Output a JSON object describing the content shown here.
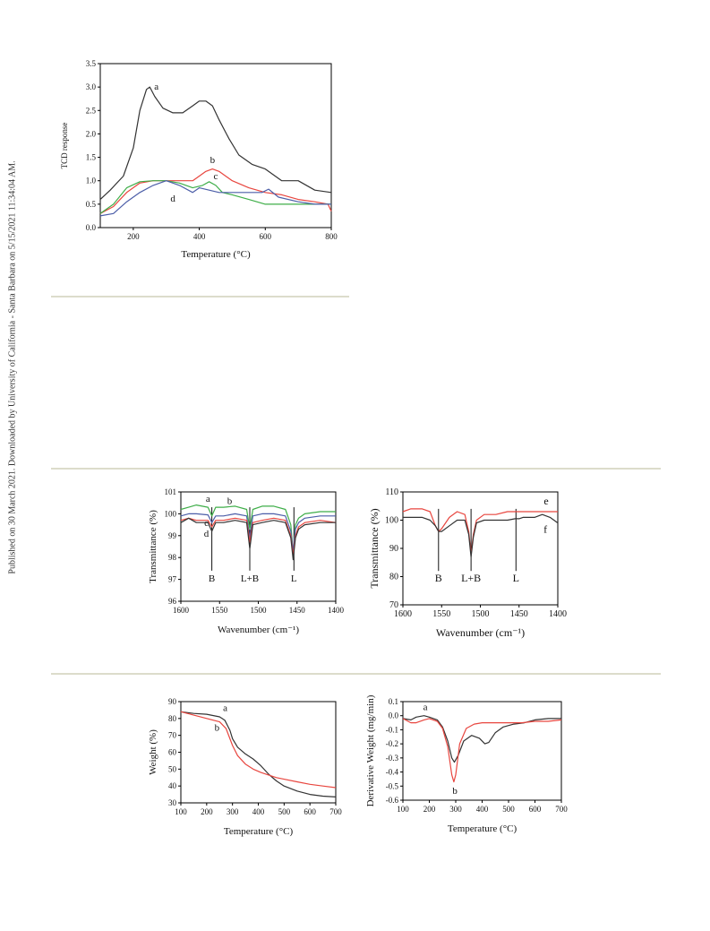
{
  "side_note": "Published on 30 March 2021. Downloaded by University of California - Santa Barbara on 5/15/2021 11:34:04 AM.",
  "colors": {
    "black": "#333333",
    "red": "#e8463f",
    "green": "#3fae49",
    "blue": "#4c5ea8",
    "rule": "#dcdccb"
  },
  "chart_data": [
    {
      "id": "tpr",
      "type": "line",
      "xlabel": "Temperature (°C)",
      "ylabel": "TCD response",
      "xlim": [
        100,
        800
      ],
      "ylim": [
        0,
        3.5
      ],
      "xticks": [
        200,
        400,
        600,
        800
      ],
      "yticks": [
        0.0,
        0.5,
        1.0,
        1.5,
        2.0,
        2.5,
        3.0,
        3.5
      ],
      "ytick_labels": [
        "0.0",
        "0.5",
        "1.0",
        "1.5",
        "2.0",
        "2.5",
        "3.0",
        "3.5"
      ],
      "series": [
        {
          "name": "a",
          "color": "black",
          "x": [
            100,
            130,
            170,
            200,
            220,
            240,
            250,
            265,
            290,
            320,
            350,
            380,
            400,
            420,
            440,
            460,
            490,
            520,
            560,
            600,
            650,
            700,
            750,
            800
          ],
          "y": [
            0.6,
            0.8,
            1.1,
            1.7,
            2.5,
            2.95,
            3.0,
            2.8,
            2.55,
            2.45,
            2.45,
            2.6,
            2.7,
            2.7,
            2.6,
            2.3,
            1.9,
            1.55,
            1.35,
            1.25,
            1.0,
            1.0,
            0.8,
            0.75
          ]
        },
        {
          "name": "b",
          "color": "red",
          "x": [
            100,
            140,
            180,
            220,
            260,
            300,
            340,
            380,
            400,
            420,
            440,
            460,
            500,
            550,
            600,
            650,
            700,
            750,
            790,
            800
          ],
          "y": [
            0.3,
            0.45,
            0.75,
            0.95,
            1.0,
            1.0,
            1.0,
            1.0,
            1.1,
            1.2,
            1.25,
            1.2,
            1.0,
            0.85,
            0.75,
            0.7,
            0.6,
            0.55,
            0.5,
            0.35
          ]
        },
        {
          "name": "c",
          "color": "green",
          "x": [
            100,
            140,
            180,
            220,
            260,
            300,
            340,
            380,
            410,
            430,
            450,
            470,
            500,
            550,
            600,
            650,
            700,
            750,
            800
          ],
          "y": [
            0.3,
            0.5,
            0.85,
            0.98,
            1.0,
            1.0,
            0.95,
            0.85,
            0.9,
            0.98,
            0.9,
            0.75,
            0.7,
            0.6,
            0.5,
            0.5,
            0.5,
            0.5,
            0.5
          ]
        },
        {
          "name": "d",
          "color": "blue",
          "x": [
            100,
            140,
            180,
            220,
            260,
            300,
            340,
            380,
            400,
            430,
            460,
            500,
            550,
            590,
            610,
            640,
            700,
            750,
            800
          ],
          "y": [
            0.25,
            0.3,
            0.55,
            0.75,
            0.9,
            1.0,
            0.9,
            0.75,
            0.85,
            0.8,
            0.75,
            0.75,
            0.75,
            0.75,
            0.82,
            0.65,
            0.55,
            0.5,
            0.5
          ]
        }
      ],
      "annotations": [
        {
          "text": "a",
          "x": 270,
          "y": 2.95,
          "color": "black"
        },
        {
          "text": "b",
          "x": 440,
          "y": 1.38,
          "color": "red"
        },
        {
          "text": "c",
          "x": 450,
          "y": 1.03,
          "color": "green"
        },
        {
          "text": "d",
          "x": 320,
          "y": 0.55,
          "color": "blue"
        }
      ]
    },
    {
      "id": "ir1",
      "type": "line",
      "xlabel": "Wavenumber (cm⁻¹)",
      "ylabel": "Transmittance (%)",
      "xlim": [
        1600,
        1400
      ],
      "ylim": [
        96,
        101
      ],
      "xticks": [
        1600,
        1550,
        1500,
        1450,
        1400
      ],
      "yticks": [
        96,
        97,
        98,
        99,
        100,
        101
      ],
      "ytick_labels": [
        "96",
        "97",
        "98",
        "99",
        "100",
        "101"
      ],
      "series": [
        {
          "name": "a",
          "color": "green",
          "x": [
            1600,
            1590,
            1580,
            1565,
            1560,
            1555,
            1545,
            1530,
            1515,
            1511,
            1507,
            1495,
            1480,
            1465,
            1458,
            1455,
            1452,
            1448,
            1440,
            1420,
            1400
          ],
          "y": [
            100.2,
            100.3,
            100.4,
            100.3,
            99.9,
            100.3,
            100.3,
            100.35,
            100.2,
            99.3,
            100.2,
            100.35,
            100.35,
            100.2,
            99.5,
            98.2,
            99.5,
            99.8,
            100.0,
            100.1,
            100.1
          ]
        },
        {
          "name": "b",
          "color": "blue",
          "x": [
            1600,
            1590,
            1580,
            1565,
            1560,
            1555,
            1545,
            1530,
            1515,
            1511,
            1507,
            1495,
            1480,
            1465,
            1458,
            1455,
            1452,
            1448,
            1440,
            1420,
            1400
          ],
          "y": [
            99.9,
            100.0,
            100.0,
            99.95,
            99.6,
            99.9,
            99.9,
            100.0,
            99.9,
            98.9,
            99.9,
            100.0,
            100.0,
            99.9,
            99.2,
            98.3,
            99.3,
            99.6,
            99.8,
            99.9,
            99.9
          ]
        },
        {
          "name": "c",
          "color": "red",
          "x": [
            1600,
            1590,
            1580,
            1565,
            1560,
            1555,
            1545,
            1530,
            1515,
            1511,
            1507,
            1495,
            1480,
            1465,
            1458,
            1455,
            1452,
            1448,
            1440,
            1420,
            1400
          ],
          "y": [
            99.7,
            99.8,
            99.7,
            99.7,
            99.4,
            99.7,
            99.7,
            99.8,
            99.7,
            98.7,
            99.6,
            99.7,
            99.8,
            99.7,
            99.0,
            98.1,
            99.0,
            99.4,
            99.6,
            99.7,
            99.6
          ]
        },
        {
          "name": "d",
          "color": "black",
          "x": [
            1600,
            1590,
            1580,
            1565,
            1560,
            1555,
            1545,
            1530,
            1515,
            1511,
            1507,
            1495,
            1480,
            1465,
            1458,
            1455,
            1452,
            1448,
            1440,
            1420,
            1400
          ],
          "y": [
            99.6,
            99.8,
            99.6,
            99.6,
            99.2,
            99.6,
            99.6,
            99.7,
            99.6,
            98.4,
            99.5,
            99.6,
            99.7,
            99.6,
            98.9,
            97.9,
            98.9,
            99.3,
            99.5,
            99.6,
            99.6
          ]
        }
      ],
      "markers": [
        {
          "text": "B",
          "x": 1560,
          "y_top": 100.3,
          "y_bottom": 97.4
        },
        {
          "text": "L+B",
          "x": 1511,
          "y_top": 100.3,
          "y_bottom": 97.4
        },
        {
          "text": "L",
          "x": 1454,
          "y_top": 100.3,
          "y_bottom": 97.4
        }
      ],
      "annotations": [
        {
          "text": "a",
          "x": 1565,
          "y": 100.55,
          "color": "green"
        },
        {
          "text": "b",
          "x": 1537,
          "y": 100.45,
          "color": "blue"
        },
        {
          "text": "c",
          "x": 1567,
          "y": 99.45,
          "color": "red"
        },
        {
          "text": "d",
          "x": 1567,
          "y": 98.95,
          "color": "black"
        }
      ]
    },
    {
      "id": "ir2",
      "type": "line",
      "xlabel": "Wavenumber (cm⁻¹)",
      "ylabel": "Transmittance (%)",
      "xlim": [
        1600,
        1400
      ],
      "ylim": [
        70,
        110
      ],
      "xticks": [
        1600,
        1550,
        1500,
        1450,
        1400
      ],
      "yticks": [
        70,
        80,
        90,
        100,
        110
      ],
      "ytick_labels": [
        "70",
        "80",
        "90",
        "100",
        "110"
      ],
      "series": [
        {
          "name": "e",
          "color": "red",
          "x": [
            1600,
            1590,
            1575,
            1565,
            1558,
            1554,
            1550,
            1540,
            1530,
            1520,
            1515,
            1512,
            1509,
            1505,
            1495,
            1480,
            1465,
            1455,
            1450,
            1445,
            1430,
            1420,
            1410,
            1400
          ],
          "y": [
            103,
            104,
            104,
            103,
            98,
            96,
            97,
            101,
            103,
            102,
            96,
            88,
            95,
            100,
            102,
            102,
            103,
            103,
            103,
            103,
            103,
            103,
            103,
            103
          ]
        },
        {
          "name": "f",
          "color": "black",
          "x": [
            1600,
            1590,
            1575,
            1565,
            1558,
            1554,
            1550,
            1540,
            1530,
            1520,
            1515,
            1512,
            1509,
            1505,
            1495,
            1480,
            1465,
            1455,
            1450,
            1445,
            1430,
            1420,
            1410,
            1400
          ],
          "y": [
            101,
            101,
            101,
            100,
            98,
            96,
            96,
            98,
            100,
            100,
            95,
            87,
            94,
            99,
            100,
            100,
            100,
            100.5,
            100.5,
            101,
            101,
            102,
            101,
            99
          ]
        }
      ],
      "markers": [
        {
          "text": "B",
          "x": 1554,
          "y_top": 104,
          "y_bottom": 82
        },
        {
          "text": "L+B",
          "x": 1512,
          "y_top": 104,
          "y_bottom": 82
        },
        {
          "text": "L",
          "x": 1454,
          "y_top": 104,
          "y_bottom": 82
        }
      ],
      "annotations": [
        {
          "text": "e",
          "x": 1415,
          "y": 105.5,
          "color": "red"
        },
        {
          "text": "f",
          "x": 1416,
          "y": 95.5,
          "color": "black"
        }
      ]
    },
    {
      "id": "tga",
      "type": "line",
      "xlabel": "Temperature (°C)",
      "ylabel": "Weight (%)",
      "xlim": [
        100,
        700
      ],
      "ylim": [
        30,
        90
      ],
      "xticks": [
        100,
        200,
        300,
        400,
        500,
        600,
        700
      ],
      "yticks": [
        30,
        40,
        50,
        60,
        70,
        80,
        90
      ],
      "ytick_labels": [
        "30",
        "40",
        "50",
        "60",
        "70",
        "80",
        "90"
      ],
      "series": [
        {
          "name": "a",
          "color": "black",
          "x": [
            100,
            150,
            200,
            250,
            270,
            290,
            300,
            320,
            350,
            380,
            410,
            440,
            470,
            500,
            550,
            600,
            650,
            700
          ],
          "y": [
            84,
            83,
            82.5,
            81,
            79,
            73,
            68,
            63,
            59,
            56,
            52,
            47,
            43,
            40,
            37,
            35,
            34,
            33.5
          ]
        },
        {
          "name": "b",
          "color": "red",
          "x": [
            100,
            150,
            200,
            250,
            275,
            290,
            300,
            320,
            350,
            380,
            410,
            440,
            470,
            500,
            550,
            600,
            650,
            700
          ],
          "y": [
            84,
            82,
            80,
            78,
            74,
            68,
            64,
            58,
            53,
            50,
            48,
            46.5,
            45,
            44,
            42.5,
            41,
            40,
            39
          ]
        }
      ],
      "annotations": [
        {
          "text": "a",
          "x": 272,
          "y": 84.5,
          "color": "black"
        },
        {
          "text": "b",
          "x": 240,
          "y": 72.8,
          "color": "red"
        }
      ]
    },
    {
      "id": "dtg",
      "type": "line",
      "xlabel": "Temperature (°C)",
      "ylabel": "Derivative Weight (mg/min)",
      "xlim": [
        100,
        700
      ],
      "ylim": [
        -0.6,
        0.1
      ],
      "xticks": [
        100,
        200,
        300,
        400,
        500,
        600,
        700
      ],
      "yticks": [
        -0.6,
        -0.5,
        -0.4,
        -0.3,
        -0.2,
        -0.1,
        0.0,
        0.1
      ],
      "ytick_labels": [
        "-0.6",
        "-0.5",
        "-0.4",
        "-0.3",
        "-0.2",
        "-0.1",
        "0.0",
        "0.1"
      ],
      "series": [
        {
          "name": "a",
          "color": "black",
          "x": [
            100,
            130,
            150,
            180,
            200,
            230,
            250,
            270,
            285,
            295,
            310,
            330,
            360,
            390,
            410,
            425,
            450,
            480,
            520,
            560,
            600,
            650,
            700
          ],
          "y": [
            -0.02,
            -0.03,
            -0.01,
            0.0,
            -0.01,
            -0.03,
            -0.08,
            -0.18,
            -0.3,
            -0.33,
            -0.28,
            -0.18,
            -0.14,
            -0.16,
            -0.2,
            -0.19,
            -0.12,
            -0.08,
            -0.06,
            -0.05,
            -0.03,
            -0.02,
            -0.02
          ]
        },
        {
          "name": "b",
          "color": "red",
          "x": [
            100,
            130,
            150,
            180,
            200,
            230,
            250,
            270,
            285,
            293,
            300,
            315,
            340,
            370,
            400,
            450,
            500,
            550,
            600,
            650,
            700
          ],
          "y": [
            -0.02,
            -0.05,
            -0.05,
            -0.03,
            -0.02,
            -0.04,
            -0.09,
            -0.22,
            -0.42,
            -0.47,
            -0.42,
            -0.2,
            -0.09,
            -0.06,
            -0.05,
            -0.05,
            -0.05,
            -0.05,
            -0.04,
            -0.04,
            -0.03
          ]
        }
      ],
      "annotations": [
        {
          "text": "a",
          "x": 185,
          "y": 0.04,
          "color": "black"
        },
        {
          "text": "b",
          "x": 297,
          "y": -0.555,
          "color": "red"
        }
      ]
    }
  ]
}
